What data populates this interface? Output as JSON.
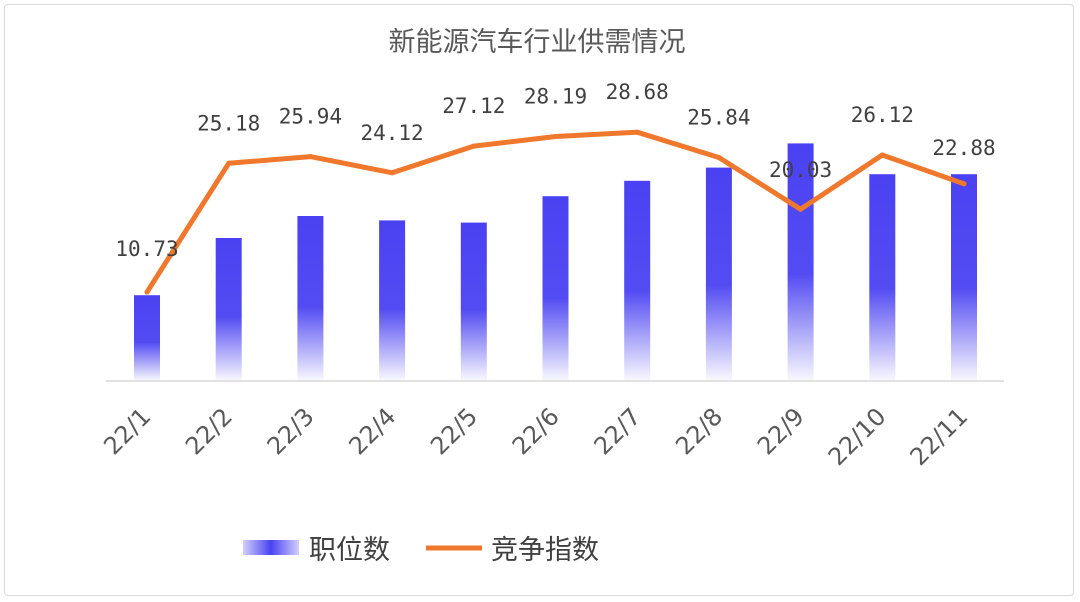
{
  "chart_data": {
    "type": "bar",
    "title": "新能源汽车行业供需情况",
    "xlabel": "",
    "ylabel": "",
    "categories": [
      "22/1",
      "22/2",
      "22/3",
      "22/4",
      "22/5",
      "22/6",
      "22/7",
      "22/8",
      "22/9",
      "22/10",
      "22/11"
    ],
    "series": [
      {
        "name": "职位数",
        "type": "bar",
        "color": "#4a42f2",
        "values": [
          0.39,
          0.65,
          0.75,
          0.73,
          0.72,
          0.84,
          0.91,
          0.97,
          1.08,
          0.94,
          0.94
        ],
        "show_labels": false
      },
      {
        "name": "竞争指数",
        "type": "line",
        "color": "#f0782c",
        "values": [
          10.73,
          25.18,
          25.94,
          24.12,
          27.12,
          28.19,
          28.68,
          25.84,
          20.03,
          26.12,
          22.88
        ],
        "labels": [
          "10.73",
          "25.18",
          "25.94",
          "24.12",
          "27.12",
          "28.19",
          "28.68",
          "25.84",
          "20.03",
          "26.12",
          "22.88"
        ],
        "show_labels": true
      }
    ],
    "legend": "bottom",
    "grid": false
  }
}
